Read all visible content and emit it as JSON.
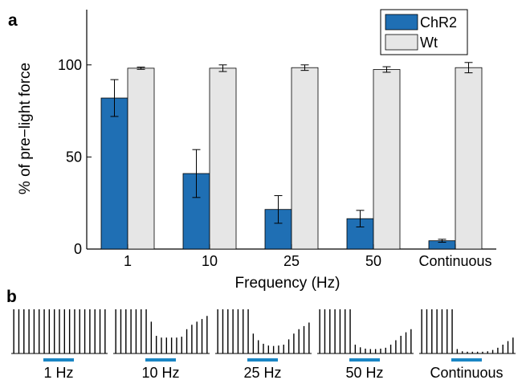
{
  "chart_data": [
    {
      "type": "bar",
      "panel": "a",
      "categories": [
        "1",
        "10",
        "25",
        "50",
        "Continuous"
      ],
      "xlabel": "Frequency (Hz)",
      "ylabel": "% of pre−light force",
      "ylim": [
        0,
        130
      ],
      "yticks": [
        0,
        50,
        100
      ],
      "legend_position": "top-right",
      "colors": {
        "ChR2": "#1f6fb4",
        "Wt": "#e6e6e6"
      },
      "series": [
        {
          "name": "ChR2",
          "values": [
            82,
            41,
            21.5,
            16.5,
            4.5
          ],
          "error": [
            10,
            13,
            7.5,
            4.5,
            0.8
          ]
        },
        {
          "name": "Wt",
          "values": [
            98.2,
            98.2,
            98.5,
            97.5,
            98.5
          ],
          "error": [
            0.6,
            1.8,
            1.5,
            1.5,
            2.8
          ]
        }
      ]
    },
    {
      "type": "line",
      "panel": "b",
      "description_labels": [
        "1 Hz",
        "10 Hz",
        "25 Hz",
        "50 Hz",
        "Continuous"
      ],
      "stim_bar_color": "#1a86c4",
      "traces": [
        {
          "label": "1 Hz",
          "values": [
            1,
            1,
            1,
            1,
            1,
            1,
            1,
            1,
            1,
            1,
            1,
            1,
            1,
            1,
            1,
            1,
            1,
            1,
            1
          ]
        },
        {
          "label": "10 Hz",
          "values": [
            1,
            1,
            1,
            1,
            1,
            1,
            1,
            0.72,
            0.4,
            0.36,
            0.36,
            0.36,
            0.36,
            0.38,
            0.55,
            0.65,
            0.72,
            0.78,
            0.85
          ]
        },
        {
          "label": "25 Hz",
          "values": [
            1,
            1,
            1,
            1,
            1,
            1,
            1,
            0.45,
            0.3,
            0.22,
            0.18,
            0.17,
            0.18,
            0.2,
            0.32,
            0.45,
            0.55,
            0.62,
            0.7
          ]
        },
        {
          "label": "50 Hz",
          "values": [
            1,
            1,
            1,
            1,
            1,
            1,
            1,
            0.2,
            0.14,
            0.11,
            0.1,
            0.1,
            0.11,
            0.13,
            0.2,
            0.3,
            0.4,
            0.48,
            0.55
          ]
        },
        {
          "label": "Continuous",
          "values": [
            1,
            1,
            1,
            1,
            1,
            1,
            1,
            0.1,
            0.05,
            0.04,
            0.04,
            0.04,
            0.04,
            0.05,
            0.08,
            0.13,
            0.2,
            0.28,
            0.36
          ]
        }
      ]
    }
  ]
}
